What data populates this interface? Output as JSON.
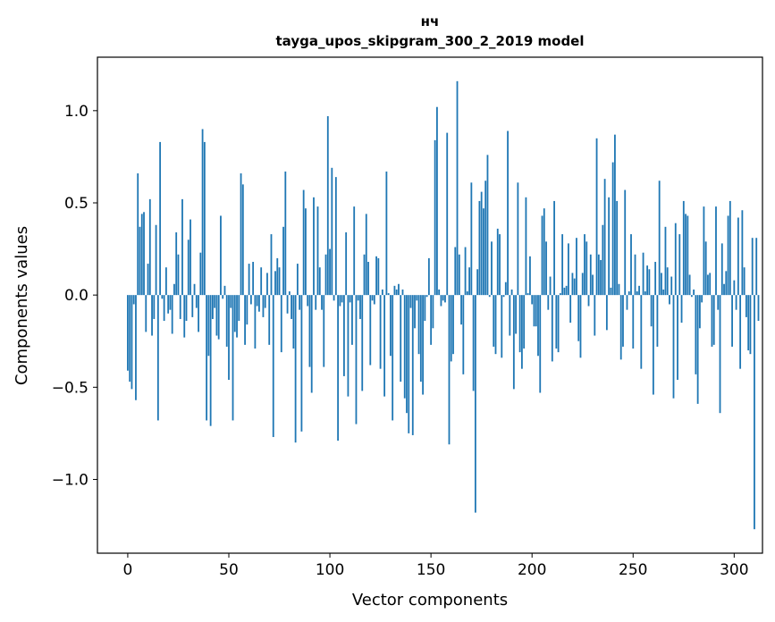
{
  "chart_data": {
    "type": "bar",
    "title_line1": "нч",
    "title_line2": "tayga_upos_skipgram_300_2_2019 model",
    "xlabel": "Vector components",
    "ylabel": "Components values",
    "xlim": [
      -15,
      314
    ],
    "ylim": [
      -1.4,
      1.29
    ],
    "xticks": [
      0,
      50,
      100,
      150,
      200,
      250,
      300
    ],
    "xtick_labels": [
      "0",
      "50",
      "100",
      "150",
      "200",
      "250",
      "300"
    ],
    "yticks": [
      -1.0,
      -0.5,
      0.0,
      0.5,
      1.0
    ],
    "ytick_labels": [
      "−1.0",
      "−0.5",
      "0.0",
      "0.5",
      "1.0"
    ],
    "bar_color": "#1f77b4",
    "values": [
      -0.41,
      -0.47,
      -0.51,
      -0.05,
      -0.57,
      0.66,
      0.37,
      0.44,
      0.45,
      -0.2,
      0.17,
      0.52,
      -0.22,
      -0.13,
      0.38,
      -0.68,
      0.83,
      -0.02,
      -0.14,
      0.15,
      -0.1,
      -0.08,
      -0.21,
      0.06,
      0.34,
      0.22,
      -0.13,
      0.52,
      -0.23,
      -0.14,
      0.3,
      0.41,
      -0.12,
      0.06,
      -0.07,
      -0.2,
      0.23,
      0.9,
      0.83,
      -0.68,
      -0.33,
      -0.71,
      -0.13,
      -0.07,
      -0.22,
      -0.24,
      0.43,
      -0.02,
      0.05,
      -0.28,
      -0.46,
      -0.07,
      -0.68,
      -0.2,
      -0.23,
      -0.14,
      0.66,
      0.6,
      -0.27,
      -0.16,
      0.17,
      -0.05,
      0.18,
      -0.29,
      -0.06,
      -0.09,
      0.15,
      -0.12,
      -0.07,
      0.12,
      -0.27,
      0.33,
      -0.77,
      0.13,
      0.2,
      0.15,
      -0.31,
      0.37,
      0.67,
      -0.1,
      0.02,
      -0.13,
      -0.29,
      -0.8,
      0.17,
      -0.08,
      -0.74,
      0.57,
      0.47,
      -0.06,
      -0.39,
      -0.53,
      0.53,
      -0.08,
      0.48,
      0.15,
      -0.08,
      -0.39,
      0.22,
      0.97,
      0.25,
      0.69,
      -0.03,
      0.64,
      -0.79,
      -0.06,
      -0.04,
      -0.44,
      0.34,
      -0.55,
      -0.04,
      -0.27,
      0.48,
      -0.7,
      -0.03,
      -0.13,
      -0.52,
      0.22,
      0.44,
      0.18,
      -0.38,
      -0.03,
      -0.05,
      0.21,
      0.2,
      -0.4,
      0.03,
      -0.55,
      0.67,
      0.01,
      -0.33,
      -0.68,
      0.05,
      0.03,
      0.06,
      -0.47,
      0.03,
      -0.56,
      -0.64,
      -0.75,
      -0.07,
      -0.76,
      -0.18,
      -0.03,
      -0.32,
      -0.47,
      -0.54,
      -0.14,
      -0.01,
      0.2,
      -0.27,
      -0.18,
      0.84,
      1.02,
      0.03,
      -0.06,
      -0.03,
      -0.04,
      0.88,
      -0.81,
      -0.36,
      -0.32,
      0.26,
      1.16,
      0.22,
      -0.16,
      -0.43,
      0.26,
      0.02,
      0.15,
      0.61,
      -0.52,
      -1.18,
      0.14,
      0.51,
      0.56,
      0.47,
      0.62,
      0.76,
      -0.01,
      0.29,
      -0.28,
      -0.32,
      0.36,
      0.33,
      -0.34,
      -0.01,
      0.07,
      0.89,
      -0.22,
      0.03,
      -0.51,
      -0.21,
      0.61,
      -0.31,
      -0.4,
      -0.29,
      0.53,
      0.01,
      0.21,
      -0.05,
      -0.17,
      -0.17,
      -0.33,
      -0.53,
      0.43,
      0.47,
      0.29,
      -0.08,
      0.1,
      -0.36,
      0.51,
      -0.29,
      -0.31,
      0.01,
      0.33,
      0.04,
      0.05,
      0.28,
      -0.15,
      0.12,
      0.09,
      0.31,
      -0.25,
      -0.34,
      0.12,
      0.33,
      0.29,
      -0.06,
      0.22,
      0.11,
      -0.22,
      0.85,
      0.22,
      0.19,
      0.38,
      0.63,
      -0.19,
      0.53,
      0.04,
      0.72,
      0.87,
      0.51,
      0.06,
      -0.35,
      -0.28,
      0.57,
      -0.08,
      0.02,
      0.33,
      -0.29,
      0.22,
      0.02,
      0.05,
      -0.4,
      0.23,
      0.02,
      0.16,
      0.14,
      -0.17,
      -0.54,
      0.18,
      -0.28,
      0.62,
      0.12,
      0.03,
      0.37,
      0.15,
      -0.05,
      0.1,
      -0.56,
      0.39,
      -0.46,
      0.33,
      -0.15,
      0.51,
      0.44,
      0.43,
      0.11,
      -0.01,
      0.03,
      -0.43,
      -0.59,
      -0.18,
      -0.04,
      0.48,
      0.29,
      0.11,
      0.12,
      -0.28,
      -0.27,
      0.48,
      -0.08,
      -0.64,
      0.28,
      0.06,
      0.13,
      0.43,
      0.51,
      -0.28,
      0.08,
      -0.08,
      0.42,
      -0.4,
      0.46,
      0.15,
      -0.12,
      -0.3,
      -0.32,
      0.31,
      -1.27,
      0.31,
      -0.14
    ]
  }
}
